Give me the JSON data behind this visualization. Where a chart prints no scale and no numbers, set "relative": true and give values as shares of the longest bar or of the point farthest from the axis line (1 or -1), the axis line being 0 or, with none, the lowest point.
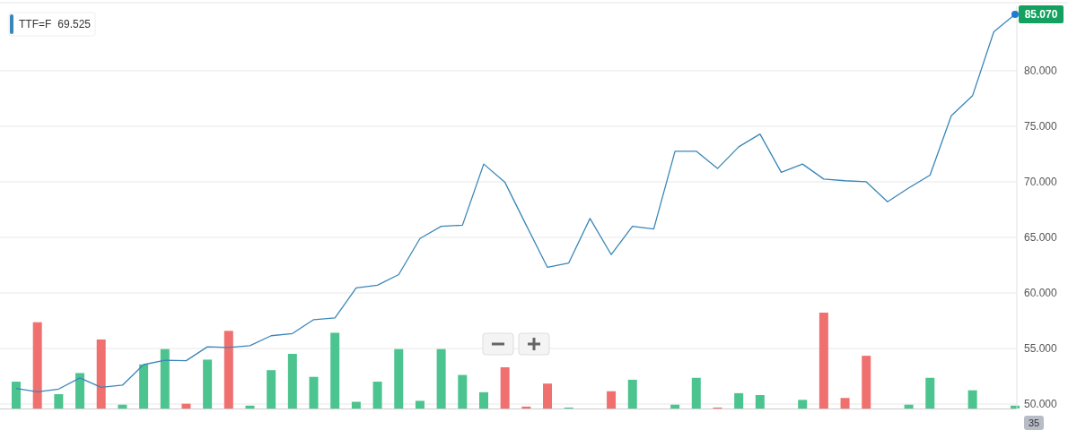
{
  "chart_data": [
    {
      "type": "line",
      "categories": [
        null,
        null,
        null,
        null,
        null,
        null,
        null,
        null,
        null,
        null,
        null,
        null,
        null,
        null,
        null,
        null,
        null,
        null,
        null,
        null,
        null,
        null,
        null,
        null,
        null,
        null,
        null,
        null,
        null,
        null,
        null,
        null,
        null,
        null,
        null,
        null,
        null,
        null,
        null,
        null,
        null,
        null,
        null,
        null,
        null,
        null,
        null,
        null
      ],
      "series": [
        {
          "name": "TTF=F",
          "color": "#3a86b8",
          "values": [
            51.4,
            51.1,
            51.35,
            52.35,
            51.5,
            51.7,
            53.55,
            53.95,
            53.9,
            55.15,
            55.1,
            55.25,
            56.15,
            56.35,
            57.6,
            57.75,
            60.45,
            60.7,
            61.65,
            64.9,
            66.0,
            66.1,
            71.6,
            69.95,
            66.1,
            62.3,
            62.7,
            66.7,
            63.45,
            66.0,
            65.75,
            72.75,
            72.75,
            71.2,
            73.15,
            74.3,
            70.85,
            71.6,
            70.25,
            70.1,
            70.0,
            68.2,
            69.45,
            70.6,
            75.95,
            77.75,
            83.5,
            85.07
          ]
        }
      ],
      "ylim": [
        49.6,
        85.8
      ],
      "yticks": [
        {
          "value": 50,
          "label": "50.000"
        },
        {
          "value": 55,
          "label": "55.000"
        },
        {
          "value": 60,
          "label": "60.000"
        },
        {
          "value": 65,
          "label": "65.000"
        },
        {
          "value": 70,
          "label": "70.000"
        },
        {
          "value": 75,
          "label": "75.000"
        },
        {
          "value": 80,
          "label": "80.000"
        }
      ],
      "grid": "y",
      "legend": "top left",
      "marker": "none",
      "annotations": [
        "69.525",
        "85.070"
      ]
    },
    {
      "type": "bar",
      "relative": true,
      "categories": [
        null,
        null,
        null,
        null,
        null,
        null,
        null,
        null,
        null,
        null,
        null,
        null,
        null,
        null,
        null,
        null,
        null,
        null,
        null,
        null,
        null,
        null,
        null,
        null,
        null,
        null,
        null,
        null,
        null,
        null,
        null,
        null,
        null,
        null,
        null,
        null,
        null,
        null,
        null,
        null,
        null,
        null,
        null,
        null,
        null,
        null,
        null,
        null
      ],
      "values": [
        0.28,
        0.9,
        0.15,
        0.37,
        0.72,
        0.04,
        0.46,
        0.62,
        0.05,
        0.51,
        0.81,
        0.03,
        0.4,
        0.57,
        0.33,
        0.79,
        0.07,
        0.28,
        0.62,
        0.08,
        0.62,
        0.35,
        0.17,
        0.43,
        0.02,
        0.26,
        0.01,
        0,
        0.18,
        0.3,
        0,
        0.04,
        0.32,
        0.01,
        0.16,
        0.14,
        0,
        0.09,
        1,
        0.11,
        0.55,
        0,
        0.04,
        0.32,
        0,
        0.19,
        0,
        0.03
      ],
      "colors": [
        "#4cc48f",
        "#f07070",
        "#4cc48f",
        "#4cc48f",
        "#f07070",
        "#4cc48f",
        "#4cc48f",
        "#4cc48f",
        "#f07070",
        "#4cc48f",
        "#f07070",
        "#4cc48f",
        "#4cc48f",
        "#4cc48f",
        "#4cc48f",
        "#4cc48f",
        "#4cc48f",
        "#4cc48f",
        "#4cc48f",
        "#4cc48f",
        "#4cc48f",
        "#4cc48f",
        "#4cc48f",
        "#f07070",
        "#f07070",
        "#f07070",
        "#4cc48f",
        "#4cc48f",
        "#f07070",
        "#4cc48f",
        "#4cc48f",
        "#4cc48f",
        "#4cc48f",
        "#f07070",
        "#4cc48f",
        "#4cc48f",
        "#4cc48f",
        "#4cc48f",
        "#f07070",
        "#f07070",
        "#f07070",
        "#4cc48f",
        "#4cc48f",
        "#4cc48f",
        "#4cc48f",
        "#4cc48f",
        "#4cc48f",
        "#4cc48f"
      ],
      "annotations": [
        "35"
      ]
    }
  ]
}
